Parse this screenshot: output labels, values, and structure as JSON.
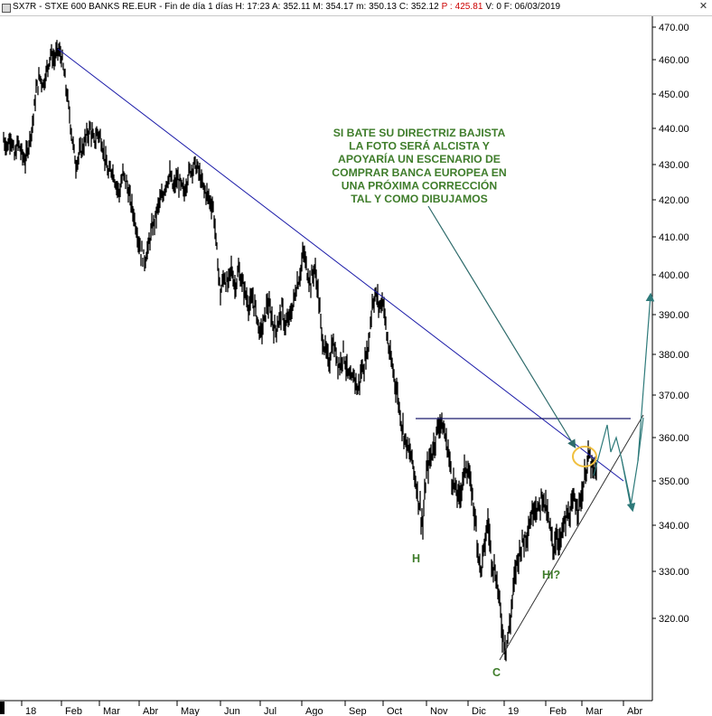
{
  "header": {
    "symbol": "SX7R - STXE 600 BANKS RE.EUR",
    "period": "Fin de día 1 días",
    "H": "H: 17:23",
    "A": "A: 352.11",
    "M": "M: 354.17",
    "m": "m: 350.13",
    "C": "C: 352.12",
    "P": "P : 425.81",
    "V": "V: 0",
    "F": "F: 06/03/2019",
    "close_icon": "x-icon"
  },
  "chart_data": {
    "type": "line",
    "title": "",
    "ylim": [
      308,
      472
    ],
    "y_ticks": [
      "470.00",
      "460.00",
      "450.00",
      "440.00",
      "430.00",
      "420.00",
      "410.00",
      "400.00",
      "390.00",
      "380.00",
      "370.00",
      "360.00",
      "350.00",
      "340.00",
      "330.00",
      "320.00"
    ],
    "x_ticks": [
      "18",
      "Feb",
      "Mar",
      "Abr",
      "May",
      "Jun",
      "Jul",
      "Ago",
      "Sep",
      "Oct",
      "Nov",
      "Dic",
      "19",
      "Feb",
      "Mar",
      "Abr"
    ],
    "series": [
      {
        "values": [
          [
            0,
            437
          ],
          [
            4,
            435
          ],
          [
            8,
            438
          ],
          [
            12,
            432
          ],
          [
            16,
            436
          ],
          [
            20,
            433
          ],
          [
            24,
            431
          ],
          [
            28,
            436
          ],
          [
            32,
            441
          ],
          [
            36,
            451
          ],
          [
            40,
            455
          ],
          [
            44,
            453
          ],
          [
            48,
            457
          ],
          [
            52,
            462
          ],
          [
            56,
            460
          ],
          [
            60,
            463
          ],
          [
            64,
            461
          ],
          [
            68,
            454
          ],
          [
            72,
            446
          ],
          [
            76,
            437
          ],
          [
            80,
            430
          ],
          [
            84,
            433
          ],
          [
            88,
            435
          ],
          [
            92,
            438
          ],
          [
            96,
            440
          ],
          [
            100,
            436
          ],
          [
            104,
            439
          ],
          [
            108,
            437
          ],
          [
            112,
            432
          ],
          [
            116,
            427
          ],
          [
            120,
            429
          ],
          [
            124,
            425
          ],
          [
            128,
            422
          ],
          [
            132,
            427
          ],
          [
            136,
            425
          ],
          [
            140,
            420
          ],
          [
            144,
            416
          ],
          [
            148,
            411
          ],
          [
            152,
            406
          ],
          [
            156,
            404
          ],
          [
            160,
            407
          ],
          [
            164,
            412
          ],
          [
            168,
            415
          ],
          [
            172,
            419
          ],
          [
            176,
            421
          ],
          [
            180,
            425
          ],
          [
            184,
            427
          ],
          [
            188,
            423
          ],
          [
            192,
            426
          ],
          [
            196,
            424
          ],
          [
            200,
            422
          ],
          [
            204,
            427
          ],
          [
            208,
            429
          ],
          [
            212,
            430
          ],
          [
            216,
            428
          ],
          [
            220,
            424
          ],
          [
            224,
            422
          ],
          [
            228,
            420
          ],
          [
            232,
            418
          ],
          [
            236,
            406
          ],
          [
            240,
            395
          ],
          [
            244,
            400
          ],
          [
            248,
            397
          ],
          [
            252,
            402
          ],
          [
            256,
            397
          ],
          [
            260,
            401
          ],
          [
            264,
            398
          ],
          [
            268,
            395
          ],
          [
            272,
            392
          ],
          [
            276,
            394
          ],
          [
            280,
            390
          ],
          [
            284,
            385
          ],
          [
            288,
            388
          ],
          [
            292,
            393
          ],
          [
            296,
            390
          ],
          [
            300,
            386
          ],
          [
            304,
            388
          ],
          [
            308,
            391
          ],
          [
            312,
            387
          ],
          [
            316,
            389
          ],
          [
            320,
            392
          ],
          [
            324,
            397
          ],
          [
            328,
            400
          ],
          [
            332,
            406
          ],
          [
            336,
            401
          ],
          [
            340,
            398
          ],
          [
            344,
            402
          ],
          [
            348,
            396
          ],
          [
            352,
            385
          ],
          [
            356,
            381
          ],
          [
            360,
            378
          ],
          [
            364,
            383
          ],
          [
            368,
            380
          ],
          [
            372,
            377
          ],
          [
            376,
            381
          ],
          [
            380,
            376
          ],
          [
            384,
            373
          ],
          [
            388,
            375
          ],
          [
            392,
            371
          ],
          [
            396,
            376
          ],
          [
            400,
            378
          ],
          [
            404,
            383
          ],
          [
            408,
            393
          ],
          [
            412,
            395
          ],
          [
            416,
            392
          ],
          [
            420,
            394
          ],
          [
            424,
            385
          ],
          [
            428,
            379
          ],
          [
            432,
            375
          ],
          [
            436,
            370
          ],
          [
            440,
            364
          ],
          [
            444,
            360
          ],
          [
            448,
            357
          ],
          [
            452,
            355
          ],
          [
            456,
            350
          ],
          [
            460,
            345
          ],
          [
            464,
            340
          ],
          [
            468,
            352
          ],
          [
            472,
            355
          ],
          [
            476,
            358
          ],
          [
            480,
            362
          ],
          [
            484,
            364
          ],
          [
            488,
            361
          ],
          [
            492,
            357
          ],
          [
            496,
            351
          ],
          [
            500,
            348
          ],
          [
            504,
            346
          ],
          [
            508,
            350
          ],
          [
            512,
            354
          ],
          [
            516,
            350
          ],
          [
            520,
            345
          ],
          [
            524,
            337
          ],
          [
            528,
            330
          ],
          [
            532,
            335
          ],
          [
            536,
            341
          ],
          [
            540,
            333
          ],
          [
            544,
            330
          ],
          [
            548,
            325
          ],
          [
            552,
            317
          ],
          [
            556,
            314
          ],
          [
            560,
            318
          ],
          [
            564,
            326
          ],
          [
            568,
            332
          ],
          [
            572,
            335
          ],
          [
            576,
            337
          ],
          [
            580,
            339
          ],
          [
            584,
            342
          ],
          [
            588,
            345
          ],
          [
            592,
            343
          ],
          [
            596,
            347
          ],
          [
            600,
            344
          ],
          [
            604,
            340
          ],
          [
            608,
            335
          ],
          [
            612,
            338
          ],
          [
            616,
            336
          ],
          [
            620,
            340
          ],
          [
            624,
            342
          ],
          [
            628,
            343
          ],
          [
            632,
            346
          ],
          [
            636,
            344
          ],
          [
            640,
            347
          ],
          [
            644,
            352
          ],
          [
            648,
            356
          ],
          [
            652,
            352
          ],
          [
            656,
            352.12
          ]
        ]
      }
    ],
    "annotations": {
      "note": [
        "SI BATE SU DIRECTRIZ BAJISTA",
        "LA FOTO SERÁ ALCISTA Y",
        "APOYARÍA UN ESCENARIO DE",
        "COMPRAR BANCA EUROPEA EN",
        "UNA PRÓXIMA CORRECCIÓN",
        "TAL Y COMO DIBUJAMOS"
      ],
      "H": "H",
      "C": "C",
      "HI": "HI?"
    },
    "colors": {
      "price": "#000000",
      "downtrend": "#1a1aa8",
      "neckline": "#1a1a6e",
      "uptrend": "#333333",
      "arrow": "#2e6b6b",
      "projection": "#2e7a7a",
      "circle": "#f0c040",
      "annotation_text": "#3f7d2b"
    }
  }
}
